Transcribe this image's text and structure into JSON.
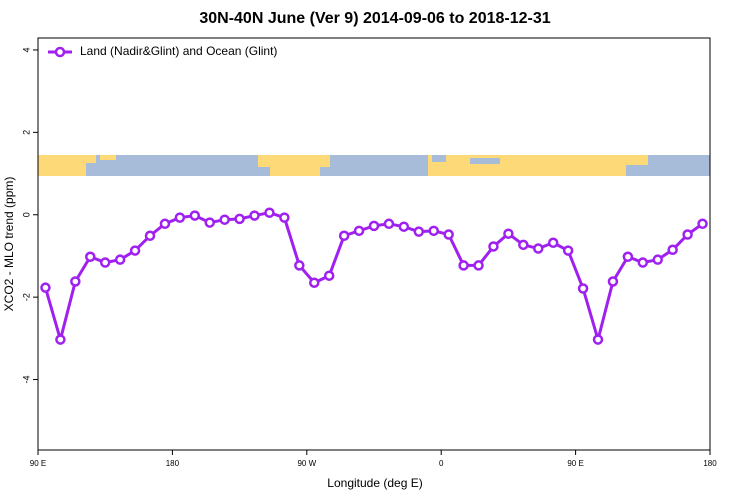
{
  "chart_data": {
    "type": "line",
    "title": "30N-40N June (Ver 9)   2014-09-06 to 2018-12-31",
    "x_label": "Longitude (deg E)",
    "y_label": "XCO2 - MLO trend (ppm)",
    "legend": "topleft",
    "xlim": [
      90,
      540
    ],
    "ylim": [
      -5.71,
      4.29
    ],
    "xticks": [
      {
        "value": 90,
        "label": "90 E"
      },
      180,
      {
        "value": 270,
        "label": "90 W"
      },
      {
        "value": 360,
        "label": "0"
      },
      {
        "value": 450,
        "label": "90 E"
      },
      {
        "value": 540,
        "label": "180"
      }
    ],
    "yticks": [
      -4,
      -2,
      0,
      2,
      4
    ],
    "x": [
      95,
      105,
      115,
      125,
      135,
      145,
      155,
      165,
      175,
      185,
      195,
      205,
      215,
      225,
      235,
      245,
      255,
      265,
      275,
      285,
      295,
      305,
      315,
      325,
      335,
      345,
      355,
      365,
      375,
      385,
      395,
      405,
      415,
      425,
      435,
      445,
      455,
      465,
      475,
      485,
      495,
      505,
      515,
      525,
      535
    ],
    "series": [
      {
        "name": "Land (Nadir&Glint) and Ocean (Glint)",
        "color": "#a020f0",
        "values": [
          -1.77,
          -3.03,
          -1.62,
          -1.02,
          -1.16,
          -1.09,
          -0.87,
          -0.51,
          -0.22,
          -0.07,
          -0.02,
          -0.19,
          -0.12,
          -0.1,
          -0.02,
          0.05,
          -0.07,
          -1.23,
          -1.65,
          -1.48,
          -0.51,
          -0.39,
          -0.27,
          -0.22,
          -0.29,
          -0.41,
          -0.39,
          -0.48,
          -1.23,
          -1.23,
          -0.77,
          -0.46,
          -0.73,
          -0.82,
          -0.68,
          -0.87,
          -1.79,
          -3.03,
          -1.62,
          -1.02,
          -1.16,
          -1.09,
          -0.85,
          -0.48,
          -0.22
        ]
      }
    ]
  }
}
